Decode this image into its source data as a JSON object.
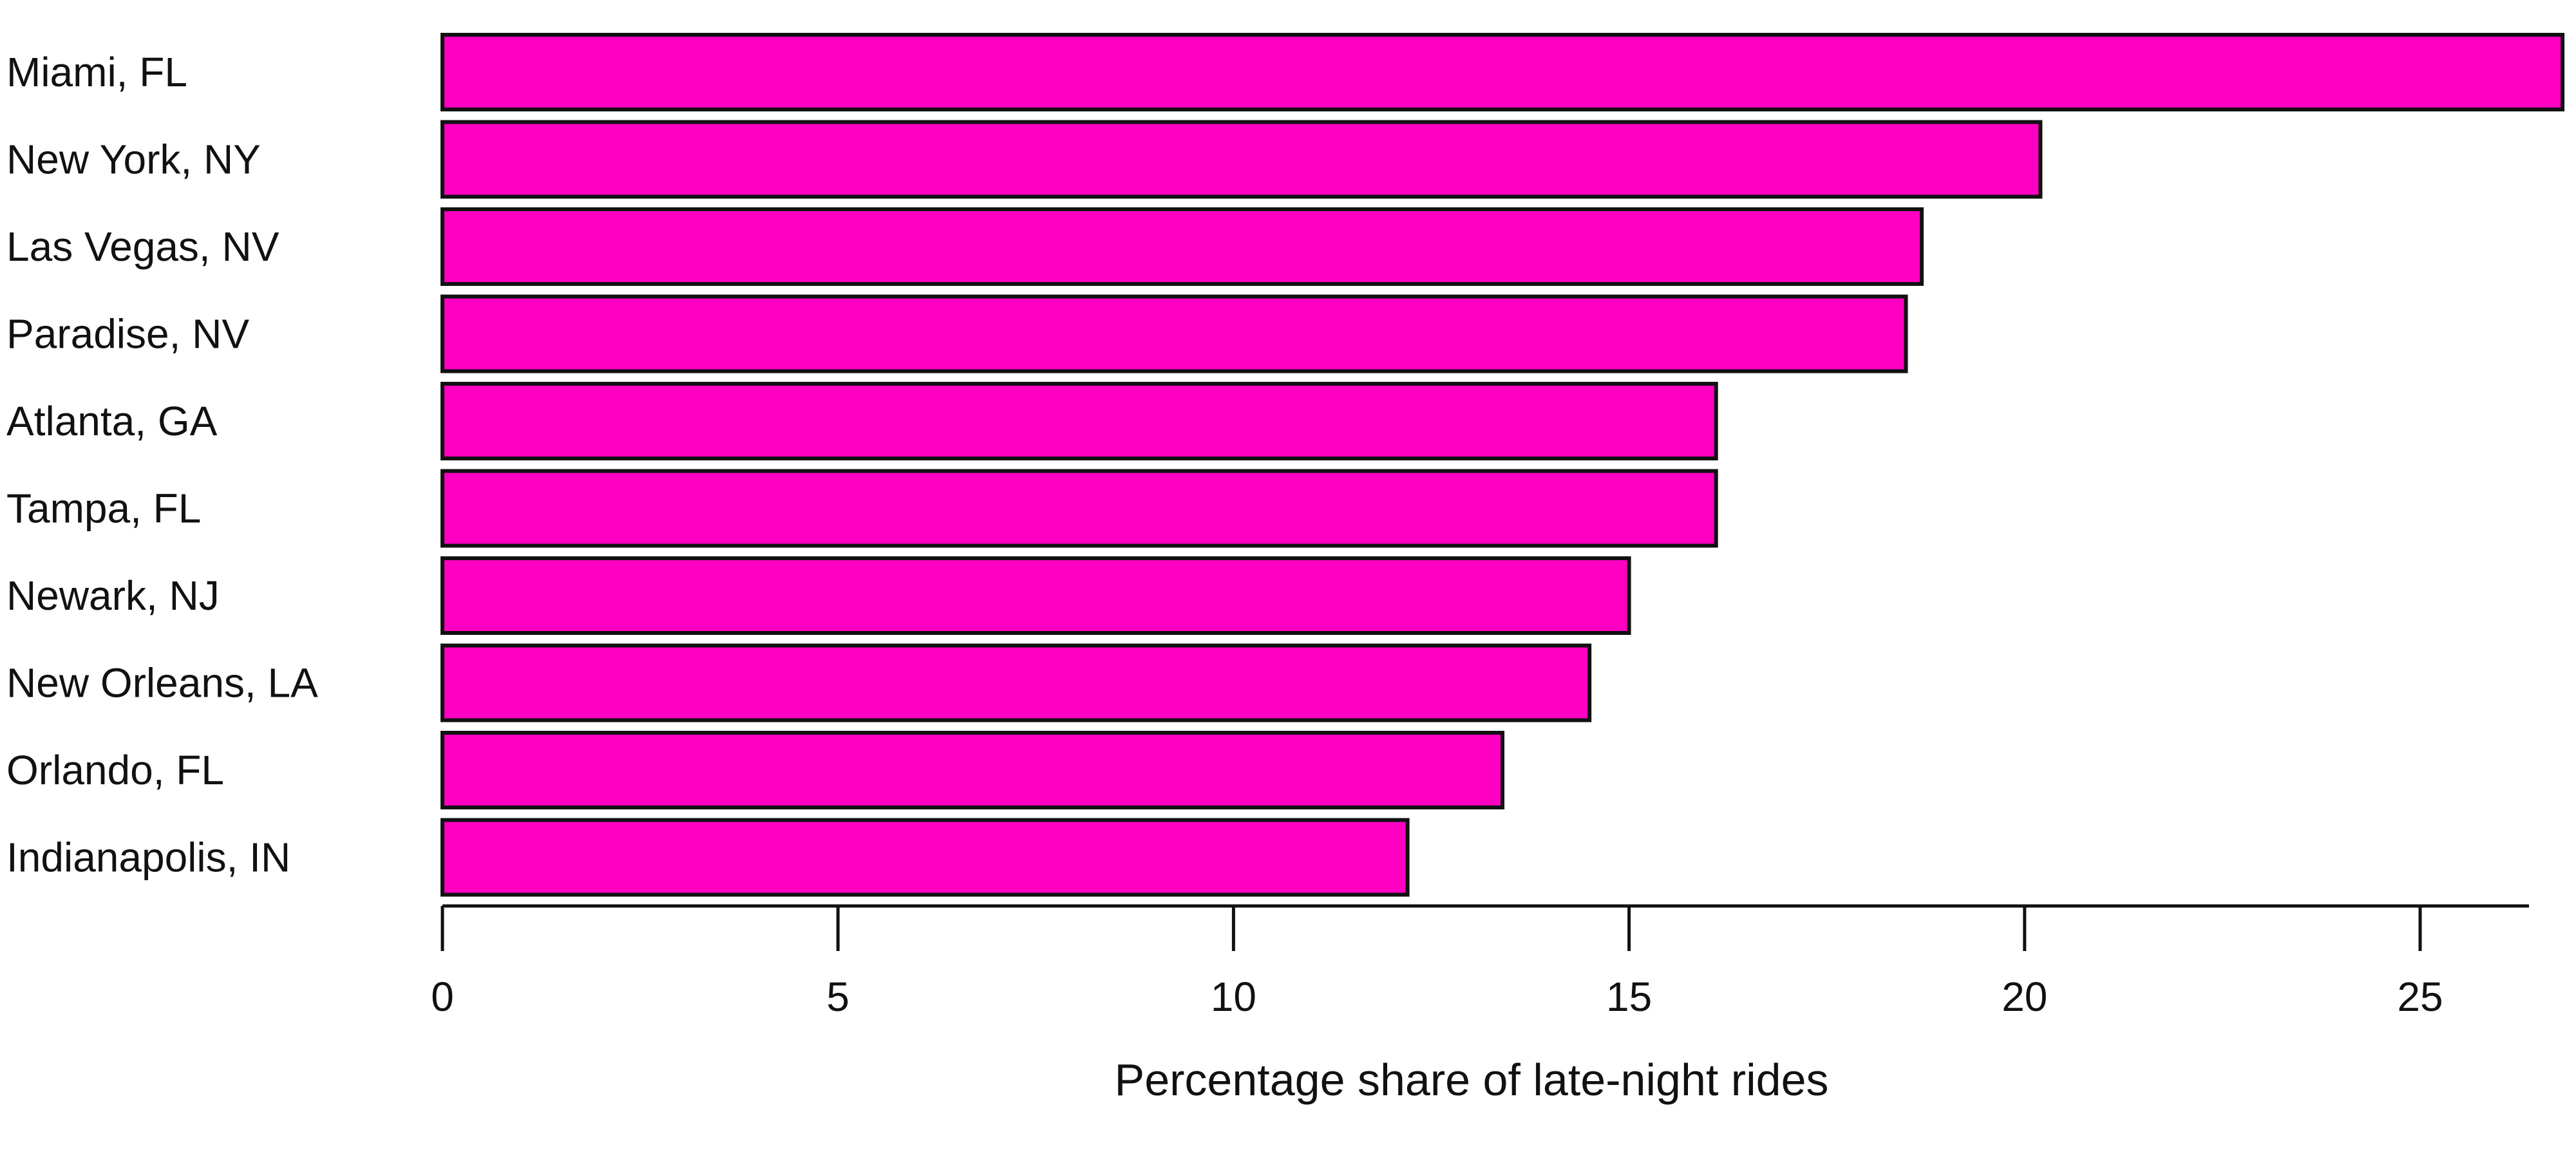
{
  "chart_data": {
    "type": "bar",
    "orientation": "horizontal",
    "categories": [
      "Miami, FL",
      "New York, NY",
      "Las Vegas, NV",
      "Paradise, NV",
      "Atlanta, GA",
      "Tampa, FL",
      "Newark, NJ",
      "New Orleans, LA",
      "Orlando, FL",
      "Indianapolis, IN"
    ],
    "values": [
      26.8,
      20.2,
      18.7,
      18.5,
      16.1,
      16.1,
      15.0,
      14.5,
      13.4,
      12.2
    ],
    "xlabel": "Percentage share of late-night rides",
    "xlim": [
      0,
      26.8
    ],
    "xticks": [
      0,
      5,
      10,
      15,
      20,
      25
    ],
    "grid": false,
    "legend": "none",
    "colors": {
      "bar_fill": "#ff00c3",
      "bar_stroke": "#111111",
      "axis": "#111111"
    }
  }
}
